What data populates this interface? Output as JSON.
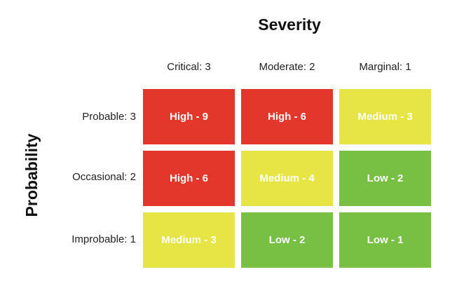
{
  "titles": {
    "severity": "Severity",
    "probability": "Probability"
  },
  "columns": [
    "Critical: 3",
    "Moderate: 2",
    "Marginal: 1"
  ],
  "rows": [
    "Probable: 3",
    "Occasional: 2",
    "Improbable: 1"
  ],
  "colors": {
    "high": "#e2372a",
    "medium": "#e6e545",
    "low": "#77c043"
  },
  "cells": [
    [
      {
        "label": "High - 9",
        "level": "high"
      },
      {
        "label": "High - 6",
        "level": "high"
      },
      {
        "label": "Medium - 3",
        "level": "medium"
      }
    ],
    [
      {
        "label": "High - 6",
        "level": "high"
      },
      {
        "label": "Medium - 4",
        "level": "medium"
      },
      {
        "label": "Low - 2",
        "level": "low"
      }
    ],
    [
      {
        "label": "Medium - 3",
        "level": "medium"
      },
      {
        "label": "Low - 2",
        "level": "low"
      },
      {
        "label": "Low - 1",
        "level": "low"
      }
    ]
  ]
}
